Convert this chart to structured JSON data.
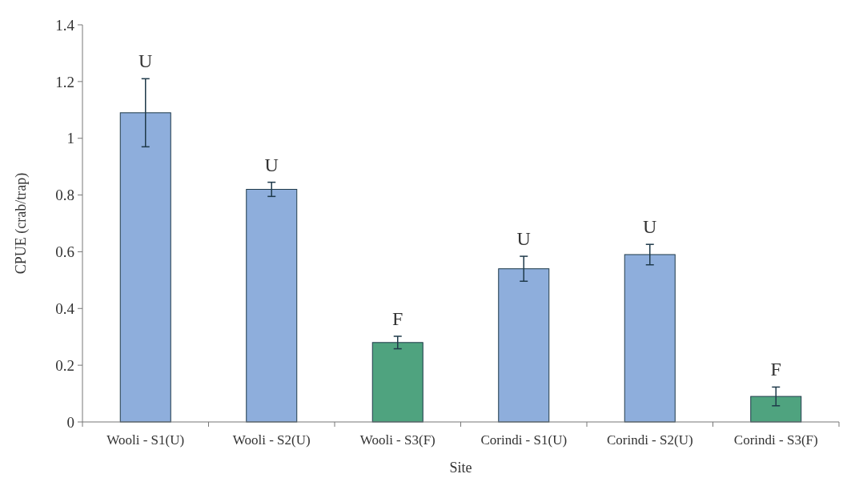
{
  "chart_data": {
    "type": "bar",
    "xlabel": "Site",
    "ylabel": "CPUE (crab/trap)",
    "categories": [
      "Wooli - S1(U)",
      "Wooli - S2(U)",
      "Wooli - S3(F)",
      "Corindi - S1(U)",
      "Corindi - S2(U)",
      "Corindi - S3(F)"
    ],
    "values": [
      1.09,
      0.82,
      0.28,
      0.54,
      0.59,
      0.09
    ],
    "errors": [
      0.12,
      0.025,
      0.022,
      0.044,
      0.036,
      0.033
    ],
    "colors": [
      "#8eaedc",
      "#8eaedc",
      "#4fa37f",
      "#8eaedc",
      "#8eaedc",
      "#4fa37f"
    ],
    "value_labels": [
      "U",
      "U",
      "F",
      "U",
      "U",
      "F"
    ],
    "ylim": [
      0,
      1.4
    ],
    "yticks": [
      0,
      0.2,
      0.4,
      0.6,
      0.8,
      1,
      1.2,
      1.4
    ],
    "grid": false
  }
}
